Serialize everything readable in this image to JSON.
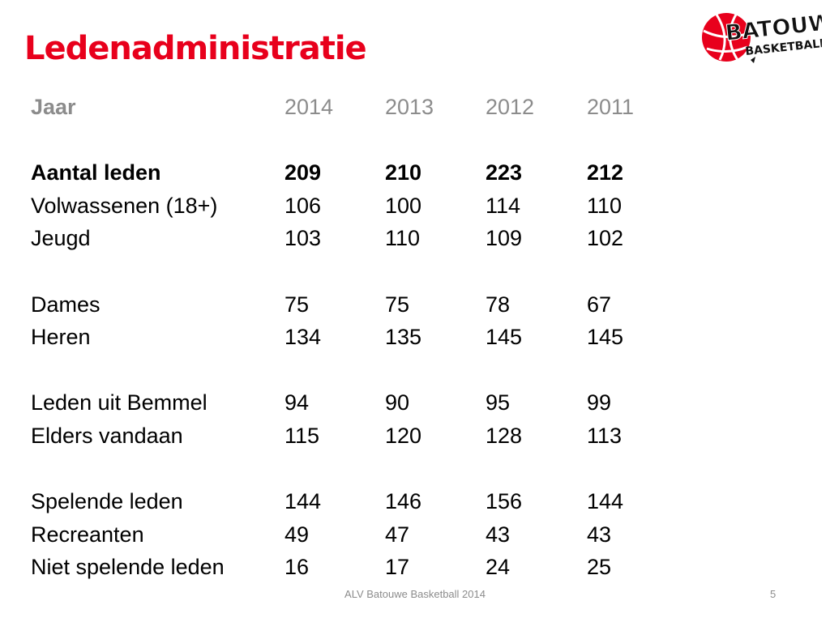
{
  "slide": {
    "title": "Ledenadministratie",
    "title_color": "#e8001c",
    "logo": {
      "line1": "BATOUWE",
      "line2": "BASKETBALL",
      "icon": "basketball-icon",
      "ball_color": "#e8001c"
    },
    "table": {
      "header": [
        "Jaar",
        "2014",
        "2013",
        "2012",
        "2011"
      ],
      "groups": [
        [
          {
            "label": "Aantal leden",
            "values": [
              "209",
              "210",
              "223",
              "212"
            ],
            "bold": true
          },
          {
            "label": "Volwassenen (18+)",
            "values": [
              "106",
              "100",
              "114",
              "110"
            ]
          },
          {
            "label": "Jeugd",
            "values": [
              "103",
              "110",
              "109",
              "102"
            ]
          }
        ],
        [
          {
            "label": "Dames",
            "values": [
              "75",
              "75",
              "78",
              "67"
            ]
          },
          {
            "label": "Heren",
            "values": [
              "134",
              "135",
              "145",
              "145"
            ]
          }
        ],
        [
          {
            "label": "Leden uit Bemmel",
            "values": [
              "94",
              "90",
              "95",
              "99"
            ]
          },
          {
            "label": "Elders vandaan",
            "values": [
              "115",
              "120",
              "128",
              "113"
            ]
          }
        ],
        [
          {
            "label": "Spelende leden",
            "values": [
              "144",
              "146",
              "156",
              "144"
            ]
          },
          {
            "label": "Recreanten",
            "values": [
              "49",
              "47",
              "43",
              "43"
            ]
          },
          {
            "label": "Niet spelende leden",
            "values": [
              "16",
              "17",
              "24",
              "25"
            ]
          }
        ]
      ]
    },
    "footer": "ALV Batouwe Basketball 2014",
    "page_number": "5"
  }
}
